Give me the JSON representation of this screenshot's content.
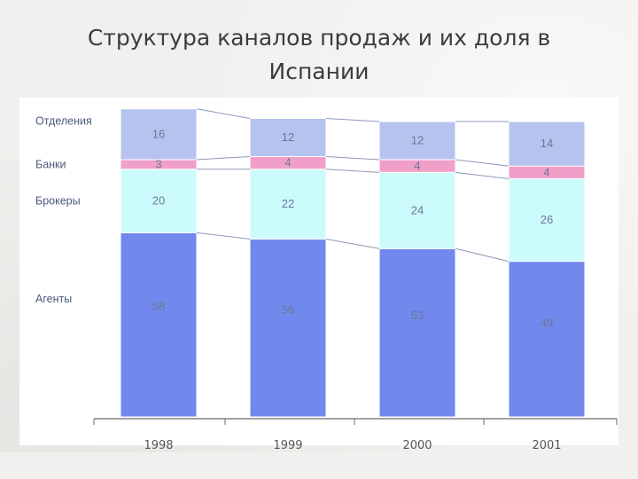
{
  "title_line1": "Структура каналов продаж и их доля в",
  "title_line2": "Испании",
  "chart_data": {
    "type": "bar",
    "stacked": true,
    "categories": [
      "1998",
      "1999",
      "2000",
      "2001"
    ],
    "series": [
      {
        "name": "Агенты",
        "values": [
          58,
          56,
          53,
          49
        ],
        "color": "#7189ec"
      },
      {
        "name": "Брокеры",
        "values": [
          20,
          22,
          24,
          26
        ],
        "color": "#ccfbfb"
      },
      {
        "name": "Банки",
        "values": [
          3,
          4,
          4,
          4
        ],
        "color": "#f0a0c8"
      },
      {
        "name": "Отделения",
        "values": [
          16,
          12,
          12,
          14
        ],
        "color": "#b7c3ef"
      }
    ],
    "ylim": [
      0,
      100
    ],
    "grid": false,
    "legend": "left"
  }
}
